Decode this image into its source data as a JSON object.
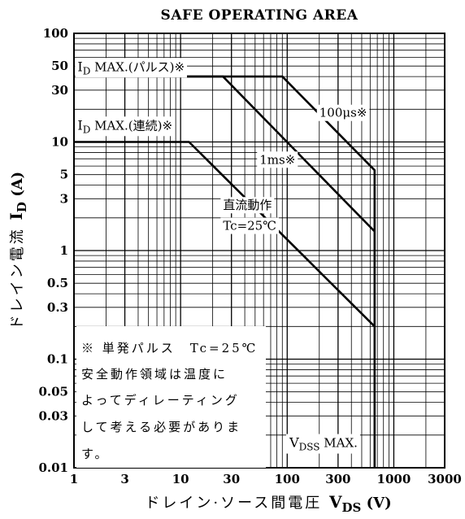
{
  "chart_data": {
    "type": "line",
    "title": "SAFE OPERATING AREA",
    "xlabel_text": "ドレイン·ソース間電圧",
    "xlabel_sym": "V",
    "xlabel_sub": "DS",
    "xlabel_unit": "(V)",
    "ylabel_text": "ドレイン電流",
    "ylabel_sym": "I",
    "ylabel_sub": "D",
    "ylabel_unit": "(A)",
    "x_scale": "log",
    "y_scale": "log",
    "xlim": [
      1,
      3000
    ],
    "ylim": [
      0.01,
      100
    ],
    "grid": true,
    "x_ticks": [
      {
        "v": 1,
        "label": "1"
      },
      {
        "v": 3,
        "label": "3"
      },
      {
        "v": 10,
        "label": "10"
      },
      {
        "v": 30,
        "label": "30"
      },
      {
        "v": 100,
        "label": "100"
      },
      {
        "v": 300,
        "label": "300"
      },
      {
        "v": 1000,
        "label": "1000"
      },
      {
        "v": 3000,
        "label": "3000"
      }
    ],
    "y_ticks": [
      {
        "v": 100,
        "label": "100"
      },
      {
        "v": 50,
        "label": "50"
      },
      {
        "v": 30,
        "label": "30"
      },
      {
        "v": 10,
        "label": "10"
      },
      {
        "v": 5,
        "label": "5"
      },
      {
        "v": 3,
        "label": "3"
      },
      {
        "v": 1,
        "label": "1"
      },
      {
        "v": 0.5,
        "label": "0.5"
      },
      {
        "v": 0.3,
        "label": "0.3"
      },
      {
        "v": 0.1,
        "label": "0.1"
      },
      {
        "v": 0.05,
        "label": "0.05"
      },
      {
        "v": 0.03,
        "label": "0.03"
      },
      {
        "v": 0.01,
        "label": "0.01"
      }
    ],
    "series": [
      {
        "points": [
          [
            1,
            40
          ],
          [
            90,
            40
          ],
          [
            660,
            5.5
          ],
          [
            660,
            0.01
          ]
        ]
      },
      {
        "points": [
          [
            1,
            40
          ],
          [
            25,
            40
          ],
          [
            660,
            1.5
          ]
        ]
      },
      {
        "points": [
          [
            1,
            10
          ],
          [
            12,
            10
          ],
          [
            660,
            0.2
          ]
        ]
      }
    ],
    "annotations": [
      {
        "id": "id-max-pulse",
        "sym": "I",
        "sub": "D",
        "text": " MAX.(パルス)※",
        "x": 1.08,
        "y": 45
      },
      {
        "id": "id-max-cont",
        "sym": "I",
        "sub": "D",
        "text": " MAX.(連続)※",
        "x": 1.08,
        "y": 13
      },
      {
        "id": "pulse-100us",
        "text": "100μs※",
        "x": 200,
        "y": 17
      },
      {
        "id": "pulse-1ms",
        "text": "1ms※",
        "x": 55,
        "y": 6.3
      },
      {
        "id": "dc-line1",
        "text": "直流動作",
        "x": 25,
        "y": 2.4
      },
      {
        "id": "dc-line2",
        "text": "Tc=25℃",
        "x": 25,
        "y": 1.55
      },
      {
        "id": "vdss-max",
        "sym": "V",
        "sub": "DSS",
        "text": " MAX.",
        "x": 105,
        "y": 0.0155
      }
    ]
  },
  "note": {
    "lines": [
      "※ 単発パルス　Tc=25℃",
      "安全動作領域は温度に",
      "よってディレーティング",
      "して考える必要がありま",
      "す。"
    ]
  }
}
